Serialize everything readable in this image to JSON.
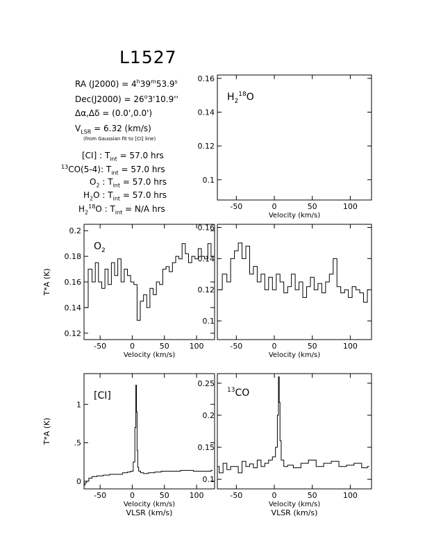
{
  "source": {
    "name": "L1527",
    "ra_label": "RA (J2000)",
    "ra_h": "4",
    "ra_m": "39",
    "ra_s": "53.9",
    "dec_label": "Dec(J2000)",
    "dec_deg": "26",
    "dec_rest": "3'10.9''",
    "offset_label": "Δα,Δδ",
    "offset_value": "(0.0',0.0')",
    "vlsr_value": "= 6.32 (km/s)",
    "vlsr_note": "(from Gaussian fit to [CI] line)"
  },
  "integrations": [
    {
      "line_pre": "",
      "line_sup": "",
      "line_post": "[CI] :",
      "value": "= 57.0 hrs"
    },
    {
      "line_pre": "",
      "line_sup": "13",
      "line_post": "CO(5-4):",
      "value": "= 57.0 hrs"
    },
    {
      "line_pre": "O",
      "line_sub": "2",
      "line_post": " :",
      "value": "= 57.0 hrs"
    },
    {
      "line_pre": "H",
      "line_sub": "2",
      "line_post": "O :",
      "value": "= 57.0 hrs"
    },
    {
      "line_pre": "H",
      "line_sub": "2",
      "line_sup": "18",
      "line_post": "O :",
      "value": "= N/A hrs"
    }
  ],
  "colors": {
    "line": "#000000",
    "background": "#ffffff"
  },
  "chart_data": [
    {
      "id": "h218o",
      "type": "line",
      "xlabel": "Velocity (km/s)",
      "ylabel": "",
      "label_main": "H",
      "label_sub": "2",
      "label_sup": "18",
      "label_tail": "O",
      "xlim": [
        -75,
        128
      ],
      "ylim": [
        0.088,
        0.162
      ],
      "xticks": [
        -50,
        0,
        50,
        100
      ],
      "yticks": [
        0.1,
        0.12,
        0.14,
        0.16
      ],
      "ytick_labels": [
        "0.1",
        "0.12",
        "0.14",
        "0.16"
      ],
      "series": []
    },
    {
      "id": "o2",
      "type": "line",
      "xlabel": "Velocity (km/s)",
      "ylabel": "T*A (K)",
      "label_main": "O",
      "label_sub": "2",
      "label_sup": "",
      "label_tail": "",
      "xlim": [
        -75,
        128
      ],
      "ylim": [
        0.115,
        0.205
      ],
      "xticks": [
        -50,
        0,
        50,
        100
      ],
      "yticks": [
        0.12,
        0.14,
        0.16,
        0.18,
        0.2
      ],
      "ytick_labels": [
        "0.12",
        "0.14",
        "0.16",
        "0.18",
        "0.2"
      ],
      "series": [
        {
          "x": [
            -72,
            -65,
            -60,
            -55,
            -50,
            -45,
            -40,
            -35,
            -30,
            -25,
            -20,
            -15,
            -10,
            -5,
            0,
            5,
            10,
            15,
            20,
            25,
            30,
            35,
            40,
            45,
            50,
            55,
            60,
            65,
            70,
            75,
            80,
            85,
            90,
            95,
            100,
            105,
            110,
            115,
            120,
            125
          ],
          "y": [
            0.14,
            0.17,
            0.16,
            0.175,
            0.16,
            0.155,
            0.17,
            0.158,
            0.175,
            0.165,
            0.178,
            0.16,
            0.17,
            0.165,
            0.16,
            0.158,
            0.13,
            0.145,
            0.15,
            0.14,
            0.155,
            0.15,
            0.16,
            0.158,
            0.17,
            0.172,
            0.168,
            0.175,
            0.18,
            0.178,
            0.19,
            0.182,
            0.175,
            0.18,
            0.178,
            0.186,
            0.18,
            0.178,
            0.19,
            0.18
          ]
        }
      ]
    },
    {
      "id": "h2o",
      "type": "line",
      "xlabel": "Velocity (km/s)",
      "ylabel": "",
      "label_main": "",
      "label_sub": "",
      "label_sup": "",
      "label_tail": "",
      "xlim": [
        -75,
        128
      ],
      "ylim": [
        0.088,
        0.162
      ],
      "xticks": [
        -50,
        0,
        50,
        100
      ],
      "yticks": [
        0.1,
        0.12,
        0.14,
        0.16
      ],
      "ytick_labels": [
        "0.1",
        "0.12",
        "0.14",
        "0.16"
      ],
      "series": [
        {
          "x": [
            -72,
            -65,
            -60,
            -55,
            -50,
            -45,
            -40,
            -35,
            -30,
            -25,
            -20,
            -15,
            -10,
            -5,
            0,
            5,
            10,
            15,
            20,
            25,
            30,
            35,
            40,
            45,
            50,
            55,
            60,
            65,
            70,
            75,
            80,
            85,
            90,
            95,
            100,
            105,
            110,
            115,
            120,
            125
          ],
          "y": [
            0.12,
            0.13,
            0.125,
            0.14,
            0.145,
            0.15,
            0.14,
            0.148,
            0.13,
            0.135,
            0.125,
            0.13,
            0.12,
            0.128,
            0.12,
            0.13,
            0.125,
            0.118,
            0.122,
            0.13,
            0.12,
            0.125,
            0.115,
            0.122,
            0.128,
            0.12,
            0.124,
            0.118,
            0.125,
            0.13,
            0.14,
            0.122,
            0.118,
            0.12,
            0.115,
            0.122,
            0.12,
            0.118,
            0.112,
            0.12
          ]
        }
      ]
    },
    {
      "id": "ci",
      "type": "line",
      "xlabel": "Velocity (km/s)",
      "xlabel2": "VLSR (km/s)",
      "ylabel": "T*A (K)",
      "label_main": "[CI]",
      "label_sub": "",
      "label_sup": "",
      "label_tail": "",
      "xlim": [
        -75,
        128
      ],
      "ylim": [
        -0.1,
        1.4
      ],
      "xticks": [
        -50,
        0,
        50,
        100
      ],
      "yticks": [
        0,
        0.5,
        1
      ],
      "ytick_labels": [
        "0",
        ".5",
        "1"
      ],
      "series": [
        {
          "x": [
            -75,
            -72,
            -70,
            -65,
            -60,
            -50,
            -40,
            -30,
            -20,
            -10,
            -5,
            0,
            3,
            5,
            6,
            7,
            8,
            9,
            11,
            15,
            20,
            30,
            40,
            50,
            60,
            70,
            80,
            90,
            100,
            110,
            120,
            125
          ],
          "y": [
            -0.05,
            -0.02,
            0.0,
            0.04,
            0.06,
            0.07,
            0.08,
            0.09,
            0.09,
            0.11,
            0.12,
            0.13,
            0.25,
            0.7,
            1.25,
            0.9,
            0.4,
            0.18,
            0.13,
            0.11,
            0.1,
            0.11,
            0.12,
            0.13,
            0.13,
            0.13,
            0.14,
            0.14,
            0.13,
            0.13,
            0.13,
            0.14
          ]
        }
      ]
    },
    {
      "id": "13co",
      "type": "line",
      "xlabel": "Velocity (km/s)",
      "xlabel2": "VLSR (km/s)",
      "ylabel": "",
      "label_main": "",
      "label_sub": "",
      "label_sup": "13",
      "label_tail": "CO",
      "xlim": [
        -75,
        128
      ],
      "ylim": [
        0.085,
        0.265
      ],
      "xticks": [
        -50,
        0,
        50,
        100
      ],
      "yticks": [
        0.1,
        0.15,
        0.2,
        0.25
      ],
      "ytick_labels": [
        "0.1",
        "0.15",
        "0.2",
        "0.25"
      ],
      "series": [
        {
          "x": [
            -75,
            -70,
            -65,
            -60,
            -55,
            -50,
            -45,
            -40,
            -35,
            -30,
            -25,
            -20,
            -15,
            -10,
            -5,
            0,
            3,
            5,
            6,
            7,
            8,
            10,
            15,
            20,
            30,
            40,
            50,
            60,
            70,
            80,
            90,
            100,
            110,
            120,
            125
          ],
          "y": [
            0.12,
            0.11,
            0.125,
            0.115,
            0.12,
            0.12,
            0.11,
            0.128,
            0.12,
            0.124,
            0.118,
            0.13,
            0.12,
            0.125,
            0.13,
            0.135,
            0.15,
            0.2,
            0.26,
            0.22,
            0.16,
            0.13,
            0.12,
            0.122,
            0.118,
            0.125,
            0.13,
            0.12,
            0.125,
            0.128,
            0.12,
            0.122,
            0.125,
            0.118,
            0.12
          ]
        }
      ]
    }
  ]
}
